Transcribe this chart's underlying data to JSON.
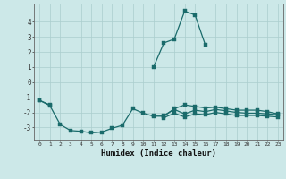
{
  "xlabel": "Humidex (Indice chaleur)",
  "background_color": "#cce8e8",
  "grid_color": "#aacece",
  "line_color": "#1a6b6b",
  "x": [
    0,
    1,
    2,
    3,
    4,
    5,
    6,
    7,
    8,
    9,
    10,
    11,
    12,
    13,
    14,
    15,
    16,
    17,
    18,
    19,
    20,
    21,
    22,
    23
  ],
  "series_main": [
    -1.2,
    -1.5,
    null,
    null,
    null,
    null,
    null,
    null,
    null,
    null,
    null,
    1.0,
    2.6,
    2.85,
    4.7,
    4.45,
    2.45,
    null,
    null,
    null,
    null,
    null,
    null,
    null
  ],
  "series_upper": [
    null,
    null,
    null,
    null,
    null,
    null,
    null,
    null,
    null,
    null,
    null,
    null,
    null,
    null,
    null,
    null,
    null,
    null,
    null,
    null,
    null,
    null,
    null,
    null
  ],
  "series_a": [
    -1.2,
    -1.55,
    -2.8,
    -3.2,
    -3.25,
    -3.35,
    -3.3,
    -3.05,
    -2.85,
    -1.75,
    -2.05,
    -2.25,
    -2.25,
    -1.75,
    -1.5,
    -1.6,
    -1.7,
    -1.65,
    -1.75,
    -1.85,
    -1.85,
    -1.85,
    -1.95,
    -2.1
  ],
  "series_b": [
    null,
    null,
    null,
    null,
    null,
    null,
    null,
    null,
    null,
    null,
    null,
    -2.2,
    -2.2,
    -1.8,
    -2.1,
    -1.85,
    -1.95,
    -1.8,
    -1.9,
    -2.0,
    -2.05,
    -2.05,
    -2.1,
    -2.15
  ],
  "series_c": [
    null,
    null,
    null,
    null,
    null,
    null,
    null,
    null,
    null,
    null,
    null,
    null,
    -2.35,
    -2.05,
    -2.3,
    -2.1,
    -2.15,
    -2.0,
    -2.1,
    -2.2,
    -2.2,
    -2.2,
    -2.25,
    -2.3
  ],
  "ylim": [
    -3.8,
    5.2
  ],
  "xlim": [
    -0.5,
    23.5
  ],
  "yticks": [
    -3,
    -2,
    -1,
    0,
    1,
    2,
    3,
    4
  ],
  "xticks": [
    0,
    1,
    2,
    3,
    4,
    5,
    6,
    7,
    8,
    9,
    10,
    11,
    12,
    13,
    14,
    15,
    16,
    17,
    18,
    19,
    20,
    21,
    22,
    23
  ]
}
